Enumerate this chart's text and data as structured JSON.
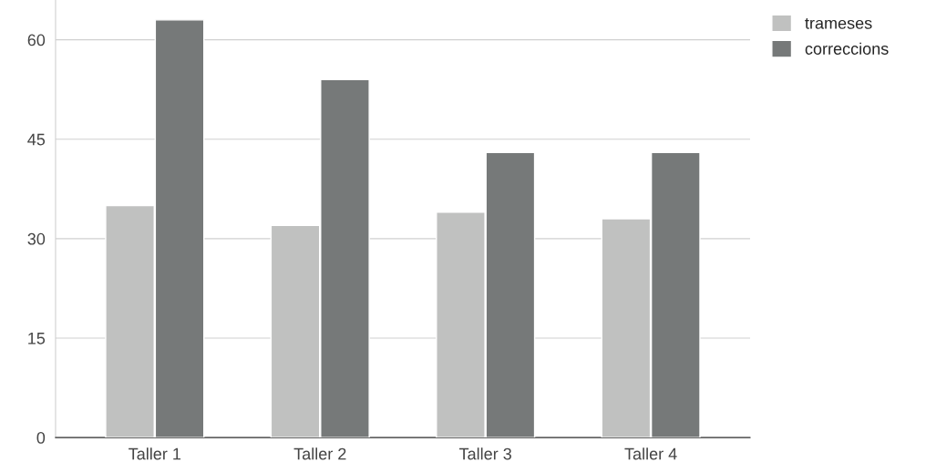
{
  "chart_data": {
    "type": "bar",
    "categories": [
      "Taller 1",
      "Taller 2",
      "Taller 3",
      "Taller 4"
    ],
    "series": [
      {
        "name": "trameses",
        "color": "#c0c1c0",
        "values": [
          35,
          32,
          34,
          33
        ]
      },
      {
        "name": "correccions",
        "color": "#767979",
        "values": [
          63,
          54,
          43,
          43
        ]
      }
    ],
    "ylim": [
      0,
      66
    ],
    "yticks": [
      0,
      15,
      30,
      45,
      60
    ],
    "grid": "y",
    "legend": "top right"
  }
}
